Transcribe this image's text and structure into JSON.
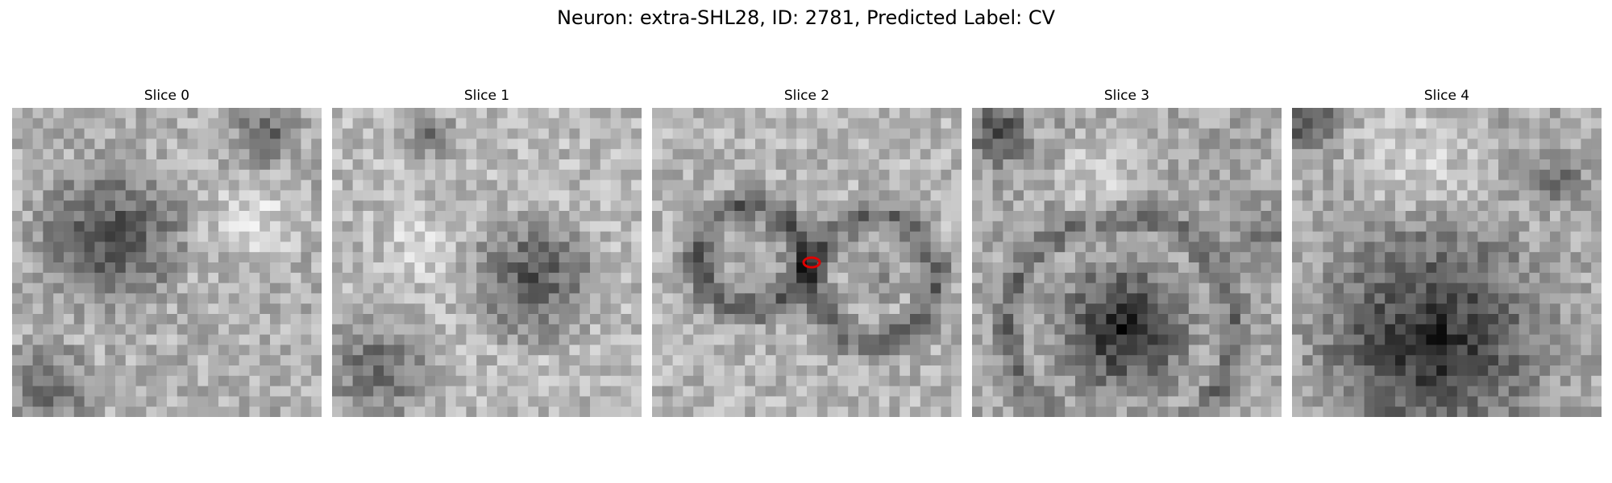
{
  "figure": {
    "suptitle": "Neuron: extra-SHL28, ID: 2781, Predicted Label: CV"
  },
  "panels": [
    {
      "title": "Slice 0"
    },
    {
      "title": "Slice 1"
    },
    {
      "title": "Slice 2"
    },
    {
      "title": "Slice 3"
    },
    {
      "title": "Slice 4"
    }
  ],
  "marker": {
    "panel_index": 2,
    "color": "#e00000"
  }
}
